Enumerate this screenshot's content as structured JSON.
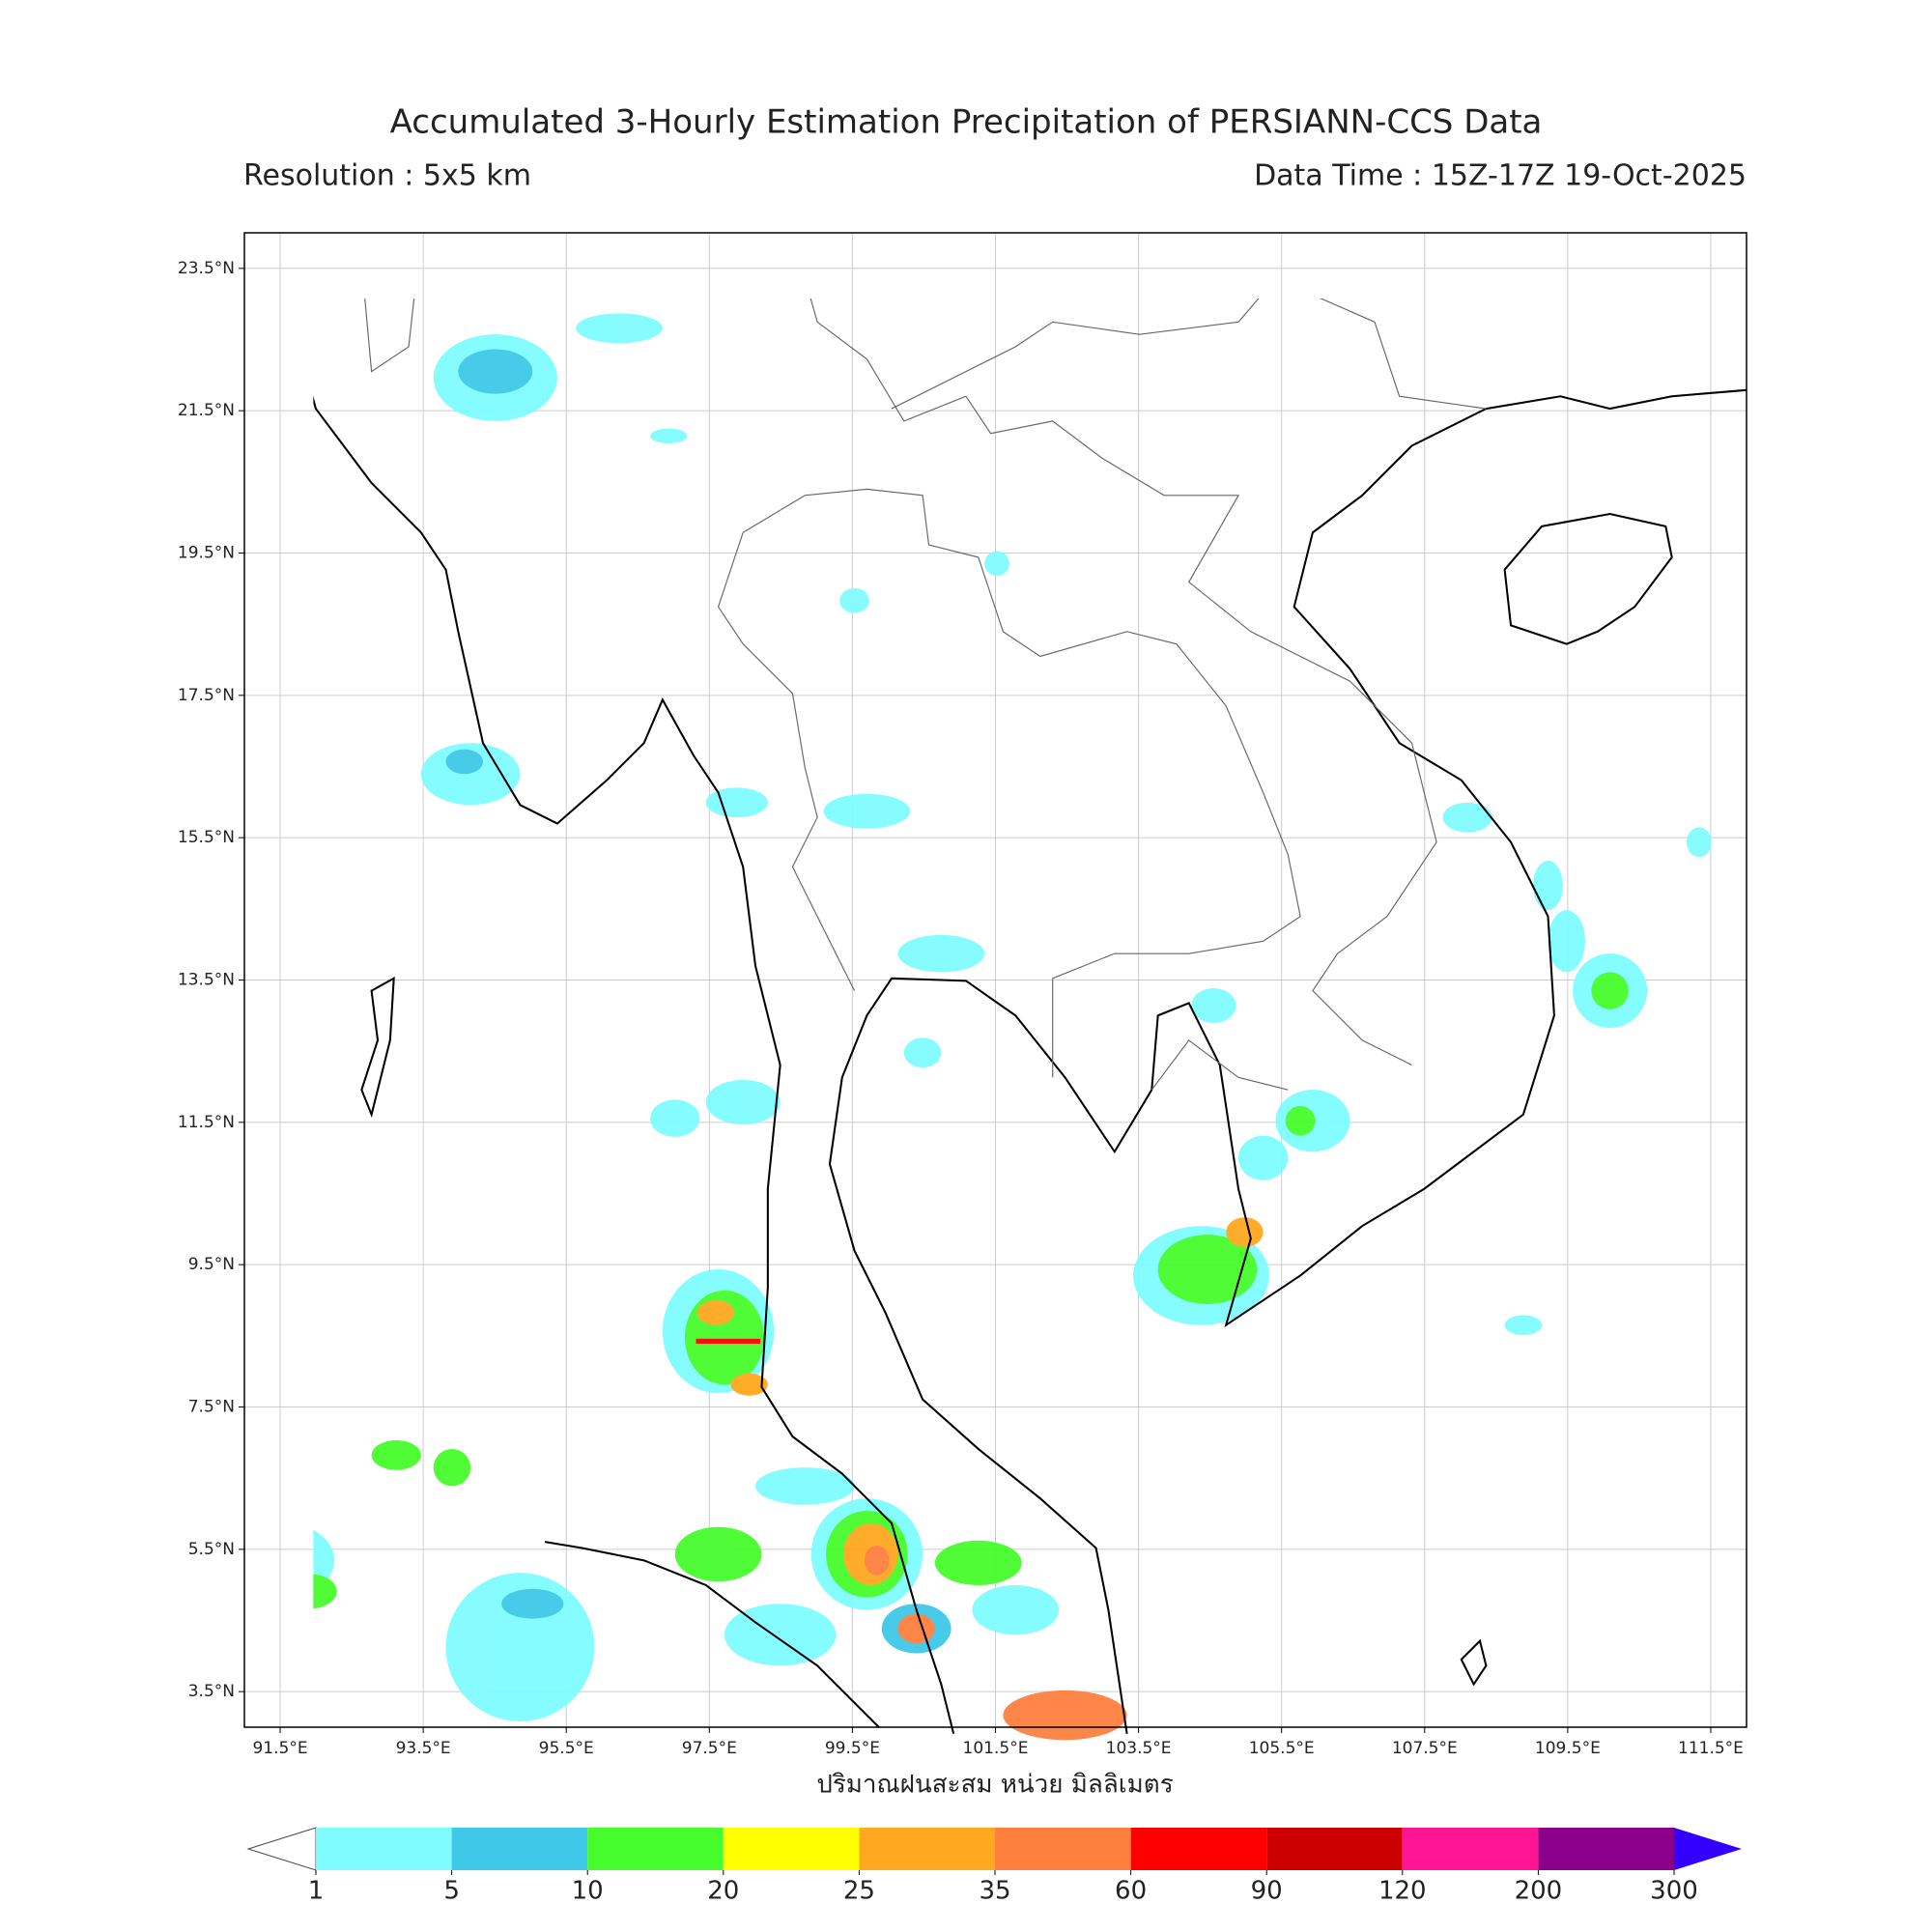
{
  "title": "Accumulated 3-Hourly Estimation Precipitation of PERSIANN-CCS Data",
  "subtitle_left": "Resolution : 5x5 km",
  "subtitle_right": "Data Time : 15Z-17Z 19-Oct-2025",
  "map": {
    "xlim": [
      91,
      112
    ],
    "ylim": [
      3,
      24
    ],
    "xticks": [
      {
        "value": 91.5,
        "label": "91.5°E"
      },
      {
        "value": 93.5,
        "label": "93.5°E"
      },
      {
        "value": 95.5,
        "label": "95.5°E"
      },
      {
        "value": 97.5,
        "label": "97.5°E"
      },
      {
        "value": 99.5,
        "label": "99.5°E"
      },
      {
        "value": 101.5,
        "label": "101.5°E"
      },
      {
        "value": 103.5,
        "label": "103.5°E"
      },
      {
        "value": 105.5,
        "label": "105.5°E"
      },
      {
        "value": 107.5,
        "label": "107.5°E"
      },
      {
        "value": 109.5,
        "label": "109.5°E"
      },
      {
        "value": 111.5,
        "label": "111.5°E"
      }
    ],
    "yticks": [
      {
        "value": 3.5,
        "label": "3.5°N"
      },
      {
        "value": 5.5,
        "label": "5.5°N"
      },
      {
        "value": 7.5,
        "label": "7.5°N"
      },
      {
        "value": 9.5,
        "label": "9.5°N"
      },
      {
        "value": 11.5,
        "label": "11.5°N"
      },
      {
        "value": 13.5,
        "label": "13.5°N"
      },
      {
        "value": 15.5,
        "label": "15.5°N"
      },
      {
        "value": 17.5,
        "label": "17.5°N"
      },
      {
        "value": 19.5,
        "label": "19.5°N"
      },
      {
        "value": 21.5,
        "label": "21.5°N"
      },
      {
        "value": 23.5,
        "label": "23.5°N"
      }
    ],
    "grid": true,
    "xlabel": "ปริมาณฝนสะสม หน่วย มิลลิเมตร"
  },
  "colorbar": {
    "levels": [
      1,
      5,
      10,
      20,
      25,
      35,
      60,
      90,
      120,
      200,
      300
    ],
    "colors": [
      "#7ffcff",
      "#3fc8e8",
      "#47fc2c",
      "#ffff00",
      "#ffa820",
      "#ff7f3f",
      "#ff0000",
      "#cc0000",
      "#ff1493",
      "#8b008b",
      "#3300ff"
    ]
  }
}
